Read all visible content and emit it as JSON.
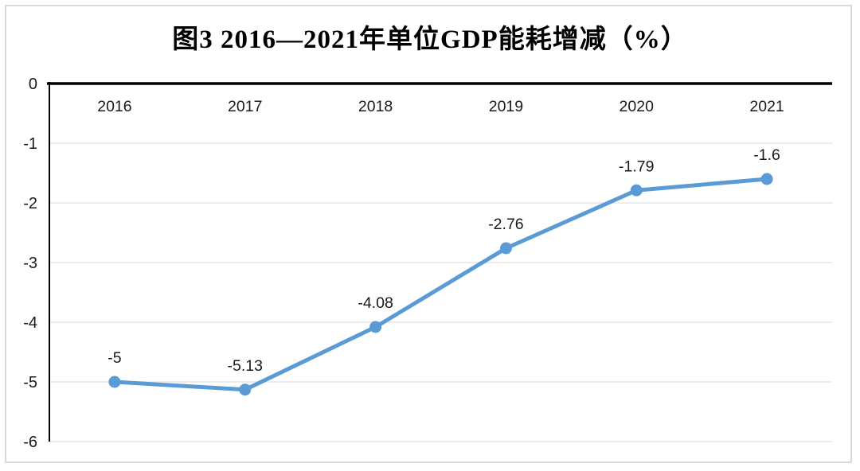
{
  "page": {
    "background": "#ffffff",
    "frame_border_color": "#d9d9d9"
  },
  "chart_data": {
    "type": "line",
    "title": "图3 2016—2021年单位GDP能耗增减（%）",
    "categories": [
      "2016",
      "2017",
      "2018",
      "2019",
      "2020",
      "2021"
    ],
    "series": [
      {
        "values": [
          -5,
          -5.13,
          -4.08,
          -2.76,
          -1.79,
          -1.6
        ],
        "data_labels": [
          "-5",
          "-5.13",
          "-4.08",
          "-2.76",
          "-1.79",
          "-1.6"
        ],
        "color": "#5b9bd5"
      }
    ],
    "xlabel": "",
    "ylabel": "",
    "ylim": [
      -6,
      0
    ],
    "yticks": [
      0,
      -1,
      -2,
      -3,
      -4,
      -5,
      -6
    ],
    "ytick_labels": [
      "0",
      "-1",
      "-2",
      "-3",
      "-4",
      "-5",
      "-6"
    ],
    "grid": true,
    "gridline_color": "#e6e6e6",
    "axis_color": "#000000",
    "legend": "none"
  }
}
